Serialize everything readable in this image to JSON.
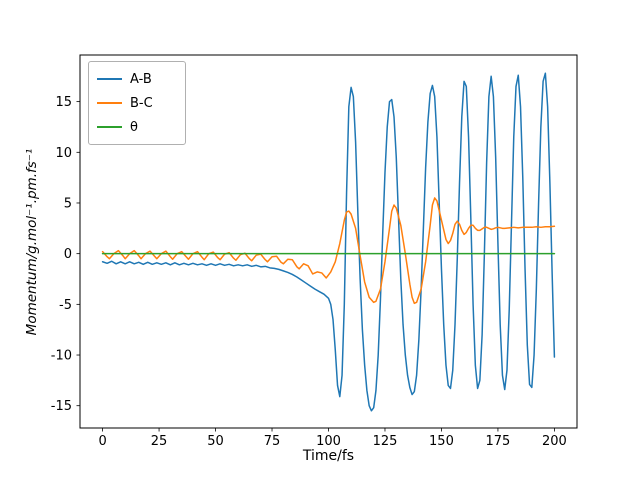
{
  "figure": {
    "background": "#ffffff"
  },
  "chart_data": {
    "type": "line",
    "title": "",
    "xlabel": "Time/fs",
    "ylabel": "Momentum/g.mol⁻¹.pm.fs⁻¹",
    "xlim": [
      -10,
      210
    ],
    "ylim": [
      -17.2,
      19.6
    ],
    "xticks": [
      0,
      25,
      50,
      75,
      100,
      125,
      150,
      175,
      200
    ],
    "yticks": [
      -15,
      -10,
      -5,
      0,
      5,
      10,
      15
    ],
    "grid": false,
    "legend_position": "upper left",
    "axis_color": "#000000",
    "series": [
      {
        "name": "A-B",
        "color": "#1f77b4",
        "points": [
          [
            0,
            -0.8
          ],
          [
            2,
            -0.95
          ],
          [
            4,
            -0.75
          ],
          [
            6,
            -1.0
          ],
          [
            8,
            -0.8
          ],
          [
            10,
            -1.0
          ],
          [
            12,
            -0.8
          ],
          [
            14,
            -1.0
          ],
          [
            16,
            -0.85
          ],
          [
            18,
            -1.05
          ],
          [
            20,
            -0.85
          ],
          [
            22,
            -1.05
          ],
          [
            24,
            -0.9
          ],
          [
            26,
            -1.05
          ],
          [
            28,
            -0.9
          ],
          [
            30,
            -1.1
          ],
          [
            32,
            -0.9
          ],
          [
            34,
            -1.1
          ],
          [
            36,
            -0.95
          ],
          [
            38,
            -1.1
          ],
          [
            40,
            -0.95
          ],
          [
            42,
            -1.1
          ],
          [
            44,
            -1.0
          ],
          [
            46,
            -1.15
          ],
          [
            48,
            -1.0
          ],
          [
            50,
            -1.15
          ],
          [
            52,
            -1.0
          ],
          [
            54,
            -1.15
          ],
          [
            56,
            -1.05
          ],
          [
            58,
            -1.2
          ],
          [
            60,
            -1.1
          ],
          [
            62,
            -1.2
          ],
          [
            64,
            -1.1
          ],
          [
            66,
            -1.25
          ],
          [
            68,
            -1.15
          ],
          [
            70,
            -1.3
          ],
          [
            72,
            -1.25
          ],
          [
            74,
            -1.4
          ],
          [
            76,
            -1.45
          ],
          [
            78,
            -1.55
          ],
          [
            80,
            -1.7
          ],
          [
            82,
            -1.85
          ],
          [
            84,
            -2.05
          ],
          [
            86,
            -2.3
          ],
          [
            88,
            -2.6
          ],
          [
            90,
            -2.9
          ],
          [
            92,
            -3.2
          ],
          [
            94,
            -3.5
          ],
          [
            96,
            -3.75
          ],
          [
            98,
            -4.0
          ],
          [
            100,
            -4.4
          ],
          [
            101,
            -5.0
          ],
          [
            102,
            -6.5
          ],
          [
            103,
            -9.5
          ],
          [
            104,
            -13.0
          ],
          [
            105,
            -14.1
          ],
          [
            106,
            -12.0
          ],
          [
            107,
            -5.0
          ],
          [
            108,
            6.0
          ],
          [
            109,
            14.5
          ],
          [
            110,
            16.4
          ],
          [
            111,
            15.5
          ],
          [
            112,
            11.0
          ],
          [
            113,
            4.0
          ],
          [
            114,
            -2.5
          ],
          [
            115,
            -7.5
          ],
          [
            116,
            -11.0
          ],
          [
            117,
            -13.5
          ],
          [
            118,
            -15.0
          ],
          [
            119,
            -15.5
          ],
          [
            120,
            -15.2
          ],
          [
            121,
            -13.5
          ],
          [
            122,
            -10.0
          ],
          [
            123,
            -4.5
          ],
          [
            124,
            2.0
          ],
          [
            125,
            8.0
          ],
          [
            126,
            12.5
          ],
          [
            127,
            15.0
          ],
          [
            128,
            15.2
          ],
          [
            129,
            13.5
          ],
          [
            130,
            9.5
          ],
          [
            131,
            3.5
          ],
          [
            132,
            -2.5
          ],
          [
            133,
            -7.0
          ],
          [
            134,
            -10.0
          ],
          [
            135,
            -12.0
          ],
          [
            136,
            -13.2
          ],
          [
            137,
            -13.9
          ],
          [
            138,
            -13.6
          ],
          [
            139,
            -12.0
          ],
          [
            140,
            -8.5
          ],
          [
            141,
            -3.5
          ],
          [
            142,
            2.5
          ],
          [
            143,
            8.5
          ],
          [
            144,
            13.0
          ],
          [
            145,
            15.8
          ],
          [
            146,
            16.6
          ],
          [
            147,
            15.5
          ],
          [
            148,
            11.5
          ],
          [
            149,
            5.0
          ],
          [
            150,
            -1.5
          ],
          [
            151,
            -7.0
          ],
          [
            152,
            -11.0
          ],
          [
            153,
            -13.0
          ],
          [
            154,
            -13.3
          ],
          [
            155,
            -11.5
          ],
          [
            156,
            -7.0
          ],
          [
            157,
            -0.5
          ],
          [
            158,
            7.0
          ],
          [
            159,
            13.5
          ],
          [
            160,
            17.0
          ],
          [
            161,
            16.5
          ],
          [
            162,
            11.5
          ],
          [
            163,
            3.5
          ],
          [
            164,
            -5.0
          ],
          [
            165,
            -11.0
          ],
          [
            166,
            -13.3
          ],
          [
            167,
            -12.5
          ],
          [
            168,
            -8.0
          ],
          [
            169,
            0.0
          ],
          [
            170,
            9.0
          ],
          [
            171,
            15.5
          ],
          [
            172,
            17.5
          ],
          [
            173,
            15.5
          ],
          [
            174,
            9.5
          ],
          [
            175,
            1.0
          ],
          [
            176,
            -7.0
          ],
          [
            177,
            -12.0
          ],
          [
            178,
            -13.4
          ],
          [
            179,
            -11.5
          ],
          [
            180,
            -5.5
          ],
          [
            181,
            3.0
          ],
          [
            182,
            11.5
          ],
          [
            183,
            16.5
          ],
          [
            184,
            17.6
          ],
          [
            185,
            14.5
          ],
          [
            186,
            7.5
          ],
          [
            187,
            -1.5
          ],
          [
            188,
            -9.0
          ],
          [
            189,
            -12.9
          ],
          [
            190,
            -13.2
          ],
          [
            191,
            -10.0
          ],
          [
            192,
            -3.5
          ],
          [
            193,
            5.0
          ],
          [
            194,
            12.5
          ],
          [
            195,
            17.0
          ],
          [
            196,
            17.8
          ],
          [
            197,
            14.5
          ],
          [
            198,
            7.0
          ],
          [
            199,
            -2.0
          ],
          [
            200,
            -10.2
          ]
        ]
      },
      {
        "name": "B-C",
        "color": "#ff7f0e",
        "points": [
          [
            0,
            0.2
          ],
          [
            2,
            -0.3
          ],
          [
            3,
            -0.5
          ],
          [
            5,
            0.0
          ],
          [
            7,
            0.3
          ],
          [
            9,
            -0.2
          ],
          [
            10,
            -0.5
          ],
          [
            12,
            0.0
          ],
          [
            14,
            0.3
          ],
          [
            16,
            -0.2
          ],
          [
            17,
            -0.5
          ],
          [
            19,
            0.0
          ],
          [
            21,
            0.25
          ],
          [
            23,
            -0.25
          ],
          [
            24,
            -0.5
          ],
          [
            26,
            0.0
          ],
          [
            28,
            0.25
          ],
          [
            30,
            -0.3
          ],
          [
            31,
            -0.55
          ],
          [
            33,
            0.0
          ],
          [
            35,
            0.2
          ],
          [
            37,
            -0.3
          ],
          [
            38,
            -0.55
          ],
          [
            40,
            0.0
          ],
          [
            42,
            0.2
          ],
          [
            44,
            -0.35
          ],
          [
            45,
            -0.6
          ],
          [
            47,
            0.0
          ],
          [
            49,
            0.15
          ],
          [
            51,
            -0.4
          ],
          [
            52,
            -0.6
          ],
          [
            54,
            -0.05
          ],
          [
            56,
            0.1
          ],
          [
            58,
            -0.45
          ],
          [
            59,
            -0.65
          ],
          [
            61,
            -0.1
          ],
          [
            63,
            0.05
          ],
          [
            65,
            -0.5
          ],
          [
            66,
            -0.7
          ],
          [
            68,
            -0.15
          ],
          [
            70,
            -0.05
          ],
          [
            72,
            -0.6
          ],
          [
            73,
            -0.8
          ],
          [
            75,
            -0.3
          ],
          [
            77,
            -0.25
          ],
          [
            79,
            -0.85
          ],
          [
            80,
            -1.0
          ],
          [
            82,
            -0.55
          ],
          [
            84,
            -0.6
          ],
          [
            86,
            -1.3
          ],
          [
            87,
            -1.5
          ],
          [
            89,
            -1.0
          ],
          [
            91,
            -1.2
          ],
          [
            93,
            -2.0
          ],
          [
            95,
            -1.8
          ],
          [
            97,
            -1.9
          ],
          [
            99,
            -2.4
          ],
          [
            101,
            -1.8
          ],
          [
            103,
            -0.8
          ],
          [
            105,
            1.0
          ],
          [
            107,
            3.3
          ],
          [
            108,
            4.1
          ],
          [
            109,
            4.2
          ],
          [
            110,
            3.9
          ],
          [
            112,
            2.5
          ],
          [
            114,
            -0.2
          ],
          [
            116,
            -2.8
          ],
          [
            118,
            -4.3
          ],
          [
            120,
            -4.8
          ],
          [
            121,
            -4.7
          ],
          [
            123,
            -3.5
          ],
          [
            125,
            -0.8
          ],
          [
            127,
            2.5
          ],
          [
            128,
            4.2
          ],
          [
            129,
            4.8
          ],
          [
            130,
            4.5
          ],
          [
            132,
            2.8
          ],
          [
            134,
            0.0
          ],
          [
            136,
            -3.0
          ],
          [
            137,
            -4.3
          ],
          [
            138,
            -4.9
          ],
          [
            139,
            -4.8
          ],
          [
            141,
            -3.5
          ],
          [
            143,
            -0.8
          ],
          [
            145,
            2.8
          ],
          [
            146,
            4.8
          ],
          [
            147,
            5.5
          ],
          [
            148,
            5.2
          ],
          [
            150,
            3.3
          ],
          [
            152,
            1.4
          ],
          [
            153,
            1.0
          ],
          [
            154,
            1.3
          ],
          [
            155,
            2.0
          ],
          [
            156,
            2.9
          ],
          [
            157,
            3.2
          ],
          [
            158,
            2.9
          ],
          [
            159,
            2.3
          ],
          [
            160,
            1.9
          ],
          [
            161,
            2.1
          ],
          [
            162,
            2.5
          ],
          [
            163,
            2.8
          ],
          [
            164,
            2.8
          ],
          [
            165,
            2.5
          ],
          [
            166,
            2.3
          ],
          [
            167,
            2.3
          ],
          [
            168,
            2.45
          ],
          [
            169,
            2.6
          ],
          [
            170,
            2.6
          ],
          [
            171,
            2.5
          ],
          [
            172,
            2.4
          ],
          [
            173,
            2.45
          ],
          [
            174,
            2.55
          ],
          [
            175,
            2.6
          ],
          [
            176,
            2.55
          ],
          [
            177,
            2.5
          ],
          [
            178,
            2.5
          ],
          [
            180,
            2.55
          ],
          [
            182,
            2.6
          ],
          [
            184,
            2.55
          ],
          [
            186,
            2.6
          ],
          [
            188,
            2.6
          ],
          [
            190,
            2.6
          ],
          [
            192,
            2.65
          ],
          [
            194,
            2.6
          ],
          [
            196,
            2.65
          ],
          [
            198,
            2.65
          ],
          [
            200,
            2.7
          ]
        ]
      },
      {
        "name": "θ",
        "color": "#2ca02c",
        "points": [
          [
            0,
            0
          ],
          [
            25,
            0
          ],
          [
            50,
            0
          ],
          [
            75,
            0
          ],
          [
            100,
            0
          ],
          [
            125,
            0
          ],
          [
            150,
            0
          ],
          [
            175,
            0
          ],
          [
            200,
            0
          ]
        ]
      }
    ]
  }
}
